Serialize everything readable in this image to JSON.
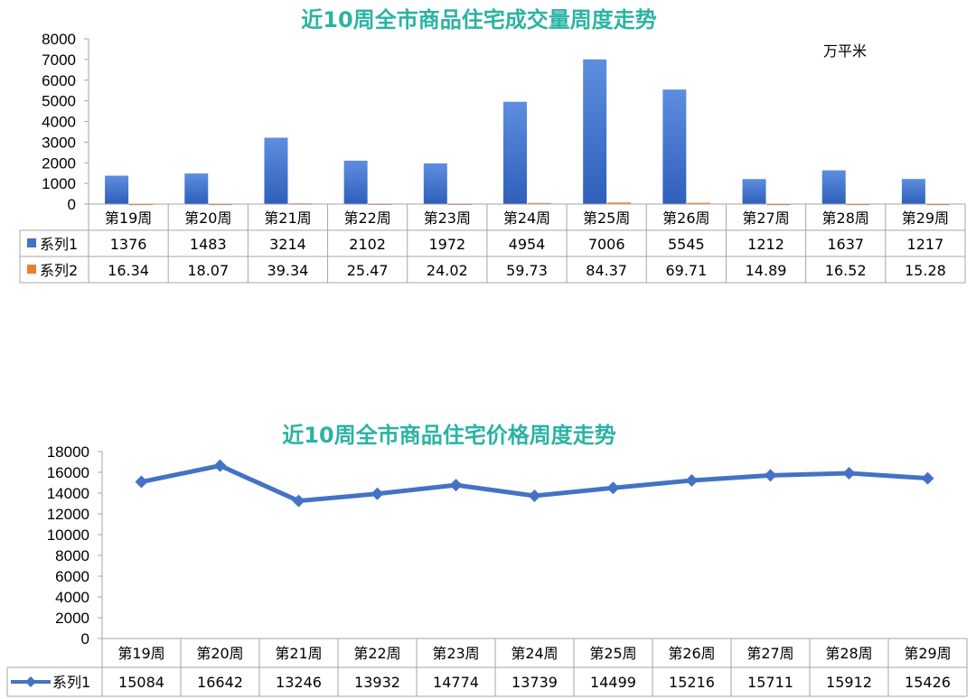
{
  "chart_data": [
    {
      "type": "bar",
      "title": "近10周全市商品住宅成交量周度走势",
      "unit_label": "万平米",
      "categories": [
        "第19周",
        "第20周",
        "第21周",
        "第22周",
        "第23周",
        "第24周",
        "第25周",
        "第26周",
        "第27周",
        "第28周",
        "第29周"
      ],
      "series": [
        {
          "name": "系列1",
          "values": [
            1376,
            1483,
            3214,
            2102,
            1972,
            4954,
            7006,
            5545,
            1212,
            1637,
            1217
          ],
          "display": [
            "1376",
            "1483",
            "3214",
            "2102",
            "1972",
            "4954",
            "7006",
            "5545",
            "1212",
            "1637",
            "1217"
          ],
          "color": "#4472c4"
        },
        {
          "name": "系列2",
          "values": [
            16.34,
            18.07,
            39.34,
            25.47,
            24.02,
            59.73,
            84.37,
            69.71,
            14.89,
            16.52,
            15.28
          ],
          "display": [
            "16.34",
            "18.07",
            "39.34",
            "25.47",
            "24.02",
            "59.73",
            "84.37",
            "69.71",
            "14.89",
            "16.52",
            "15.28"
          ],
          "color": "#ed7d31"
        }
      ],
      "ylim": [
        0,
        8000
      ],
      "yticks": [
        "0",
        "1000",
        "2000",
        "3000",
        "4000",
        "5000",
        "6000",
        "7000",
        "8000"
      ],
      "data_table": true
    },
    {
      "type": "line",
      "title": "近10周全市商品住宅价格周度走势",
      "categories": [
        "第19周",
        "第20周",
        "第21周",
        "第22周",
        "第23周",
        "第24周",
        "第25周",
        "第26周",
        "第27周",
        "第28周",
        "第29周"
      ],
      "series": [
        {
          "name": "系列1",
          "values": [
            15084,
            16642,
            13246,
            13932,
            14774,
            13739,
            14499,
            15216,
            15711,
            15912,
            15426
          ],
          "display": [
            "15084",
            "16642",
            "13246",
            "13932",
            "14774",
            "13739",
            "14499",
            "15216",
            "15711",
            "15912",
            "15426"
          ],
          "color": "#4472c4"
        }
      ],
      "ylim": [
        0,
        18000
      ],
      "yticks": [
        "0",
        "2000",
        "4000",
        "6000",
        "8000",
        "10000",
        "12000",
        "14000",
        "16000",
        "18000"
      ],
      "data_table": true
    }
  ]
}
